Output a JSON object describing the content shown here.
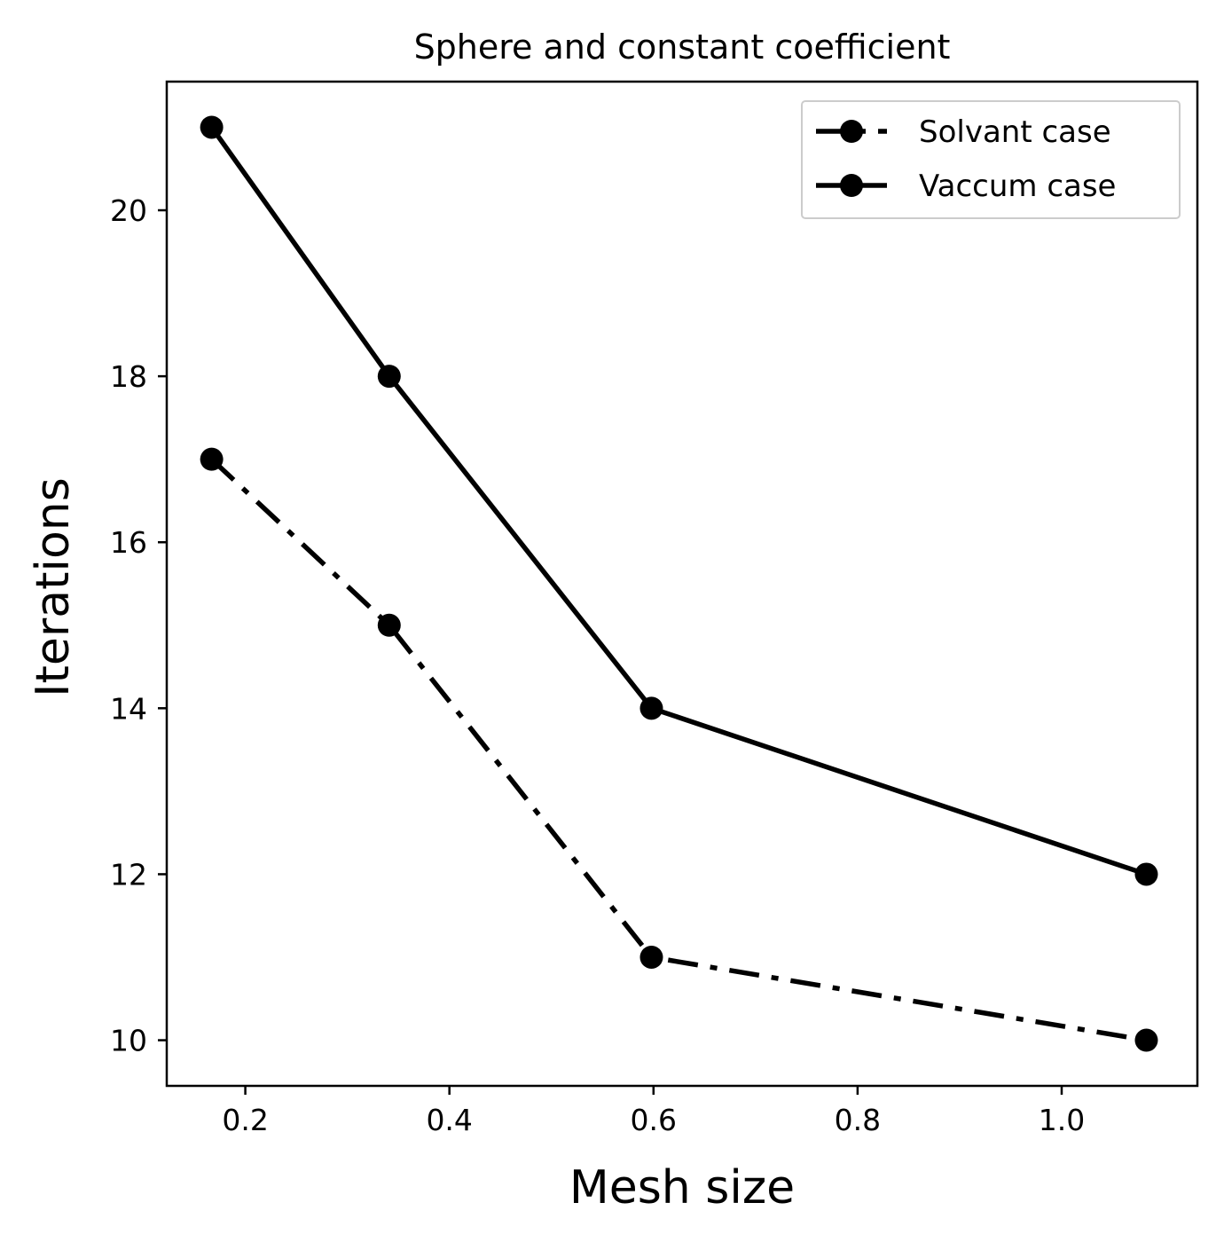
{
  "chart_data": {
    "type": "line",
    "title": "Sphere and constant coefficient",
    "xlabel": "Mesh size",
    "ylabel": "Iterations",
    "xlim": [
      0.123,
      1.133
    ],
    "ylim": [
      9.45,
      21.55
    ],
    "xticks": [
      0.2,
      0.4,
      0.6,
      0.8,
      1.0
    ],
    "xtick_labels": [
      "0.2",
      "0.4",
      "0.6",
      "0.8",
      "1.0"
    ],
    "yticks": [
      10,
      12,
      14,
      16,
      18,
      20
    ],
    "ytick_labels": [
      "10",
      "12",
      "14",
      "16",
      "18",
      "20"
    ],
    "grid": false,
    "legend_position": "top-right",
    "series": [
      {
        "name": "Solvant case",
        "line_style": "dashdot",
        "marker": "circle",
        "color": "#000000",
        "x": [
          0.167,
          0.341,
          0.598,
          1.083
        ],
        "y": [
          17,
          15,
          11,
          10
        ]
      },
      {
        "name": "Vaccum case",
        "line_style": "solid",
        "marker": "circle",
        "color": "#000000",
        "x": [
          0.167,
          0.341,
          0.598,
          1.083
        ],
        "y": [
          21,
          18,
          14,
          12
        ]
      }
    ]
  }
}
